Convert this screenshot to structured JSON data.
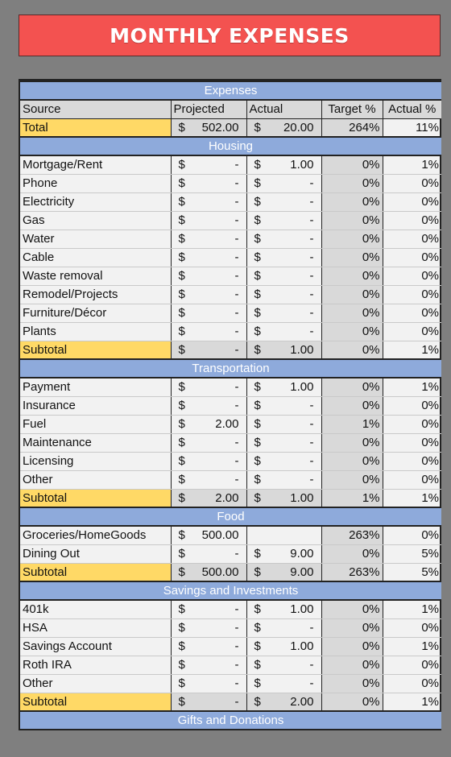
{
  "title": "MONTHLY EXPENSES",
  "colors": {
    "banner": "#f35250",
    "section": "#8eaadb",
    "highlight": "#ffd966",
    "grey": "#d9d9d9"
  },
  "header": {
    "section": "Expenses",
    "cols": [
      "Source",
      "Projected",
      "Actual",
      "Target %",
      "Actual %"
    ]
  },
  "total": {
    "label": "Total",
    "proj": "502.00",
    "act": "20.00",
    "tp": "264%",
    "ap": "11%"
  },
  "sections": [
    {
      "name": "Housing",
      "rows": [
        {
          "label": "Mortgage/Rent",
          "proj": "-",
          "act": "1.00",
          "tp": "0%",
          "ap": "1%"
        },
        {
          "label": "Phone",
          "proj": "-",
          "act": "-",
          "tp": "0%",
          "ap": "0%"
        },
        {
          "label": "Electricity",
          "proj": "-",
          "act": "-",
          "tp": "0%",
          "ap": "0%"
        },
        {
          "label": "Gas",
          "proj": "-",
          "act": "-",
          "tp": "0%",
          "ap": "0%"
        },
        {
          "label": "Water",
          "proj": "-",
          "act": "-",
          "tp": "0%",
          "ap": "0%"
        },
        {
          "label": "Cable",
          "proj": "-",
          "act": "-",
          "tp": "0%",
          "ap": "0%"
        },
        {
          "label": "Waste removal",
          "proj": "-",
          "act": "-",
          "tp": "0%",
          "ap": "0%"
        },
        {
          "label": "Remodel/Projects",
          "proj": "-",
          "act": "-",
          "tp": "0%",
          "ap": "0%"
        },
        {
          "label": "Furniture/Décor",
          "proj": "-",
          "act": "-",
          "tp": "0%",
          "ap": "0%"
        },
        {
          "label": "Plants",
          "proj": "-",
          "act": "-",
          "tp": "0%",
          "ap": "0%"
        }
      ],
      "subtotal": {
        "label": "Subtotal",
        "proj": "-",
        "act": "1.00",
        "tp": "0%",
        "ap": "1%"
      }
    },
    {
      "name": "Transportation",
      "rows": [
        {
          "label": "Payment",
          "proj": "-",
          "act": "1.00",
          "tp": "0%",
          "ap": "1%"
        },
        {
          "label": "Insurance",
          "proj": "-",
          "act": "-",
          "tp": "0%",
          "ap": "0%"
        },
        {
          "label": "Fuel",
          "proj": "2.00",
          "act": "-",
          "tp": "1%",
          "ap": "0%"
        },
        {
          "label": "Maintenance",
          "proj": "-",
          "act": "-",
          "tp": "0%",
          "ap": "0%"
        },
        {
          "label": "Licensing",
          "proj": "-",
          "act": "-",
          "tp": "0%",
          "ap": "0%"
        },
        {
          "label": "Other",
          "proj": "-",
          "act": "-",
          "tp": "0%",
          "ap": "0%"
        }
      ],
      "subtotal": {
        "label": "Subtotal",
        "proj": "2.00",
        "act": "1.00",
        "tp": "1%",
        "ap": "1%"
      }
    },
    {
      "name": "Food",
      "rows": [
        {
          "label": "Groceries/HomeGoods",
          "proj": "500.00",
          "act": "",
          "tp": "263%",
          "ap": "0%"
        },
        {
          "label": "Dining Out",
          "proj": "-",
          "act": "9.00",
          "tp": "0%",
          "ap": "5%"
        }
      ],
      "subtotal": {
        "label": "Subtotal",
        "proj": "500.00",
        "act": "9.00",
        "tp": "263%",
        "ap": "5%"
      }
    },
    {
      "name": "Savings and Investments",
      "rows": [
        {
          "label": "401k",
          "proj": "-",
          "act": "1.00",
          "tp": "0%",
          "ap": "1%"
        },
        {
          "label": "HSA",
          "proj": "-",
          "act": "-",
          "tp": "0%",
          "ap": "0%"
        },
        {
          "label": "Savings Account",
          "proj": "-",
          "act": "1.00",
          "tp": "0%",
          "ap": "1%"
        },
        {
          "label": "Roth IRA",
          "proj": "-",
          "act": "-",
          "tp": "0%",
          "ap": "0%"
        },
        {
          "label": "Other",
          "proj": "-",
          "act": "-",
          "tp": "0%",
          "ap": "0%"
        }
      ],
      "subtotal": {
        "label": "Subtotal",
        "proj": "-",
        "act": "2.00",
        "tp": "0%",
        "ap": "1%"
      }
    },
    {
      "name": "Gifts and Donations",
      "rows": []
    }
  ]
}
